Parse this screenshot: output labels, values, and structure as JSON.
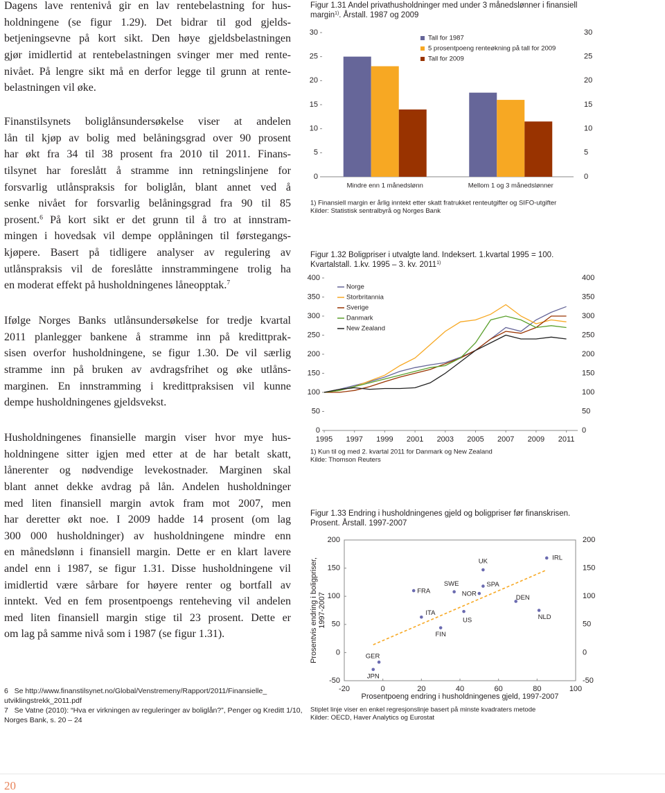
{
  "text": {
    "paragraphs": [
      [
        "Dagens lave rentenivå gir en lav rentebelastning for hus-",
        "holdningene (se figur 1.29). Det bidrar til god gjelds-",
        "betjeningsevne på kort sikt. Den høye gjeldsbelastningen",
        "gjør imidlertid at rentebelastningen svinger mer med rente-",
        "nivået. På lengre sikt må en derfor legge til grunn at rente-",
        "belastningen vil øke."
      ],
      [
        "Finanstilsynets boliglånsundersøkelse viser at andelen",
        "lån til kjøp av bolig med belåningsgrad over 90 prosent",
        "har økt fra 34 til 38 prosent fra 2010 til 2011. Finans-",
        "tilsynet har foreslått å stramme inn retningslinjene for",
        "forsvarlig utlånspraksis for boliglån, blant annet ved å",
        "senke nivået for forsvarlig belåningsgrad fra 90 til 85",
        [
          "prosent.",
          "6",
          " På kort sikt er det grunn til å tro at innstram-"
        ],
        "mingen i hovedsak vil dempe opplåningen til førstegangs-",
        "kjøpere. Basert på tidligere analyser av regulering av",
        "utlånspraksis vil de foreslåtte innstrammingene trolig ha",
        [
          "en moderat effekt på husholdningenes låneopptak.",
          "7"
        ]
      ],
      [
        "Ifølge Norges Banks utlånsundersøkelse for tredje kvartal",
        "2011 planlegger bankene å stramme inn på kredittprak-",
        "sisen overfor husholdningene, se figur 1.30. De vil særlig",
        "stramme inn på bruken av avdragsfrihet og øke utlåns-",
        "marginen. En innstramming i kredittpraksisen vil kunne",
        "dempe husholdningenes gjeldsvekst."
      ],
      [
        "Husholdningenes finansielle margin viser hvor mye hus-",
        "holdningene sitter igjen med etter at de har betalt skatt,",
        "lånerenter og nødvendige levekostnader. Marginen skal",
        "blant annet dekke avdrag på lån. Andelen husholdninger",
        "med liten finansiell margin avtok fram mot 2007, men",
        "har deretter økt noe. I 2009 hadde 14 prosent (om lag",
        "300 000 husholdninger) av husholdningene mindre enn",
        "en månedslønn i finansiell margin. Dette er en klart lavere",
        "andel enn i 1987, se figur 1.31. Disse husholdningene vil",
        "imidlertid være sårbare for høyere renter og bortfall av",
        "inntekt. Ved en fem prosentpoengs renteheving vil andelen",
        "med liten finansiell margin stige til 23 prosent. Dette er",
        "om lag på samme nivå som i 1987 (se figur 1.31)."
      ]
    ],
    "footnotes": [
      "6   Se http://www.finanstilsynet.no/Global/Venstremeny/Rapport/2011/Finansielle_",
      "utviklingstrekk_2011.pdf",
      "7   Se Vatne (2010): “Hva er virkningen av reguleringer av boliglån?”, Penger og Kreditt 1/10,",
      "Norges Bank, s. 20 – 24"
    ],
    "page_number": "20"
  },
  "chart_data": [
    {
      "type": "bar",
      "title": [
        "Figur 1.31 Andel privathusholdninger med under 3 månedslønner i finansiell margin",
        "1)",
        ". Årstall. 1987 og 2009"
      ],
      "categories": [
        "Mindre enn 1 månedslønn",
        "Mellom 1 og 3 månedslønner"
      ],
      "series": [
        {
          "name": "Tall for 1987",
          "color": "#666699",
          "values": [
            25,
            17.5
          ]
        },
        {
          "name": "5 prosentpoeng renteøkning på tall for 2009",
          "color": "#f7a823",
          "values": [
            23,
            16
          ]
        },
        {
          "name": "Tall for 2009",
          "color": "#993300",
          "values": [
            14,
            11.5
          ]
        }
      ],
      "ylim": [
        0,
        30
      ],
      "yticks": [
        0,
        5,
        10,
        15,
        20,
        25,
        30
      ],
      "notes": [
        "1) Finansiell margin er årlig inntekt etter skatt fratrukket renteutgifter og SIFO-utgifter",
        "Kilder: Statistisk sentralbyrå og Norges Bank"
      ]
    },
    {
      "type": "line",
      "title": [
        "Figur 1.32 Boligpriser i utvalgte land. Indeksert. 1.kvartal 1995 = 100. Kvartalstall. 1.kv. 1995 – 3. kv. 2011",
        "1)"
      ],
      "x": [
        1995,
        1996,
        1997,
        1998,
        1999,
        2000,
        2001,
        2002,
        2003,
        2004,
        2005,
        2006,
        2007,
        2008,
        2009,
        2010,
        2011
      ],
      "series": [
        {
          "name": "Norge",
          "color": "#666699",
          "values": [
            100,
            108,
            118,
            128,
            140,
            155,
            165,
            172,
            178,
            192,
            210,
            240,
            270,
            260,
            290,
            310,
            325
          ]
        },
        {
          "name": "Storbritannia",
          "color": "#f7a823",
          "values": [
            100,
            105,
            115,
            130,
            145,
            170,
            190,
            225,
            260,
            285,
            290,
            305,
            330,
            300,
            280,
            290,
            285
          ]
        },
        {
          "name": "Sverige",
          "color": "#993300",
          "values": [
            100,
            100,
            105,
            115,
            128,
            140,
            150,
            160,
            175,
            190,
            210,
            240,
            260,
            255,
            270,
            300,
            300
          ]
        },
        {
          "name": "Danmark",
          "color": "#5aa02c",
          "values": [
            100,
            105,
            115,
            125,
            135,
            145,
            155,
            165,
            170,
            190,
            230,
            290,
            300,
            290,
            270,
            275,
            270
          ]
        },
        {
          "name": "New Zealand",
          "color": "#222222",
          "values": [
            100,
            108,
            112,
            108,
            110,
            110,
            112,
            125,
            150,
            180,
            210,
            230,
            250,
            240,
            240,
            245,
            240
          ]
        }
      ],
      "xlim": [
        1995,
        2011.75
      ],
      "xticks": [
        1995,
        1997,
        1999,
        2001,
        2003,
        2005,
        2007,
        2009,
        2011
      ],
      "ylim": [
        0,
        400
      ],
      "yticks": [
        0,
        50,
        100,
        150,
        200,
        250,
        300,
        350,
        400
      ],
      "notes": [
        "1) Kun til og med 2. kvartal 2011 for Danmark og New Zealand",
        "Kilde: Thomson Reuters"
      ]
    },
    {
      "type": "scatter",
      "title": [
        "Figur 1.33 Endring i husholdningenes gjeld og boligpriser før finanskrisen. Prosent. Årstall. 1997-2007"
      ],
      "labels": [
        "UK",
        "IRL",
        "FRA",
        "SWE",
        "NOR",
        "SPA",
        "DEN",
        "ITA",
        "US",
        "FIN",
        "NLD",
        "GER",
        "JPN"
      ],
      "x": [
        52,
        85,
        16,
        37,
        50,
        52,
        69,
        20,
        42,
        30,
        81,
        -2,
        -5
      ],
      "values": [
        147,
        168,
        110,
        108,
        105,
        118,
        91,
        63,
        73,
        44,
        75,
        -17,
        -30
      ],
      "color": "#6b6bb0",
      "trend_color": "#f7a823",
      "xlim": [
        -20,
        100
      ],
      "xticks": [
        -20,
        0,
        20,
        40,
        60,
        80,
        100
      ],
      "ylim": [
        -50,
        200
      ],
      "yticks": [
        -50,
        0,
        50,
        100,
        150,
        200
      ],
      "xlabel": "Prosentpoeng endring i husholdningenes gjeld, 1997-2007",
      "ylabel": [
        "Prosentvis endring i boligpriser,",
        "1997-2007"
      ],
      "notes": [
        "Stiplet linje viser en enkel regresjonslinje basert på minste kvadraters metode",
        "Kilder: OECD, Haver Analytics og Eurostat"
      ]
    }
  ]
}
